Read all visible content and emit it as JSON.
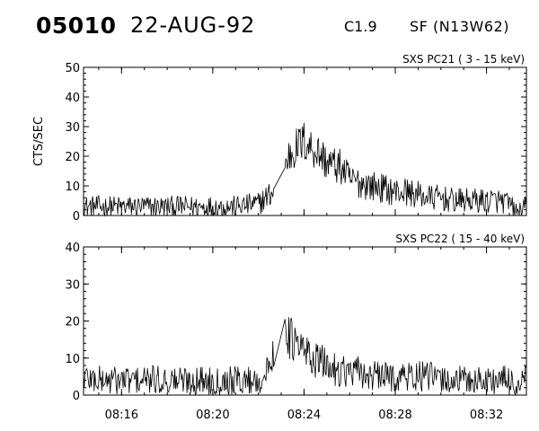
{
  "header": {
    "event_id": "05010",
    "date": "22-AUG-92",
    "goes_class": "C1.9",
    "location": "SF (N13W62)"
  },
  "chart_data": [
    {
      "type": "line",
      "title": "SXS PC21  (  3 - 15 keV)",
      "ylabel": "CTS/SEC",
      "xlabel": "",
      "ylim": [
        0,
        50
      ],
      "yticks": [
        0,
        10,
        20,
        30,
        40,
        50
      ],
      "xlim": [
        "08:14:20",
        "08:33:45"
      ],
      "xticks": [
        "08:16",
        "08:20",
        "08:24",
        "08:28",
        "08:32"
      ],
      "x": [
        "08:14:20",
        "08:15:00",
        "08:16:00",
        "08:17:00",
        "08:18:00",
        "08:19:00",
        "08:20:00",
        "08:21:00",
        "08:22:00",
        "08:22:20",
        "08:22:40",
        "08:23:00",
        "08:23:20",
        "08:23:40",
        "08:24:00",
        "08:24:20",
        "08:24:40",
        "08:25:00",
        "08:25:20",
        "08:25:40",
        "08:26:00",
        "08:26:30",
        "08:27:00",
        "08:27:30",
        "08:28:00",
        "08:28:30",
        "08:29:00",
        "08:29:30",
        "08:30:00",
        "08:30:30",
        "08:31:00",
        "08:31:30",
        "08:32:00",
        "08:32:30",
        "08:33:00",
        "08:33:20",
        "08:33:45"
      ],
      "series": [
        {
          "values": [
            3,
            3,
            3,
            3,
            3,
            3,
            3,
            3,
            4,
            6,
            8,
            12,
            20,
            23,
            25,
            23,
            21,
            18,
            17,
            16,
            12,
            11,
            10,
            9,
            8,
            8,
            7,
            6,
            6,
            5,
            5,
            5,
            5,
            5,
            4,
            1,
            3
          ]
        }
      ]
    },
    {
      "type": "line",
      "title": "SXS PC22  ( 15 - 40 keV)",
      "ylabel": "",
      "xlabel": "",
      "ylim": [
        0,
        40
      ],
      "yticks": [
        0,
        10,
        20,
        30,
        40
      ],
      "xlim": [
        "08:14:20",
        "08:33:45"
      ],
      "xticks": [
        "08:16",
        "08:20",
        "08:24",
        "08:28",
        "08:32"
      ],
      "x": [
        "08:14:20",
        "08:15:00",
        "08:16:00",
        "08:17:00",
        "08:18:00",
        "08:19:00",
        "08:20:00",
        "08:21:00",
        "08:22:00",
        "08:22:20",
        "08:22:40",
        "08:23:00",
        "08:23:20",
        "08:23:40",
        "08:24:00",
        "08:24:20",
        "08:24:40",
        "08:25:00",
        "08:25:20",
        "08:25:40",
        "08:26:00",
        "08:26:30",
        "08:27:00",
        "08:27:30",
        "08:28:00",
        "08:28:30",
        "08:29:00",
        "08:29:30",
        "08:30:00",
        "08:30:30",
        "08:31:00",
        "08:31:30",
        "08:32:00",
        "08:32:30",
        "08:33:00",
        "08:33:20",
        "08:33:45"
      ],
      "series": [
        {
          "values": [
            5,
            4,
            4,
            4,
            4,
            4,
            4,
            4,
            4,
            5,
            12,
            26,
            16,
            13,
            12,
            10,
            9,
            8,
            7,
            7,
            6,
            6,
            5,
            5,
            5,
            5,
            5,
            5,
            4,
            4,
            4,
            4,
            4,
            4,
            4,
            2,
            5
          ]
        }
      ]
    }
  ]
}
